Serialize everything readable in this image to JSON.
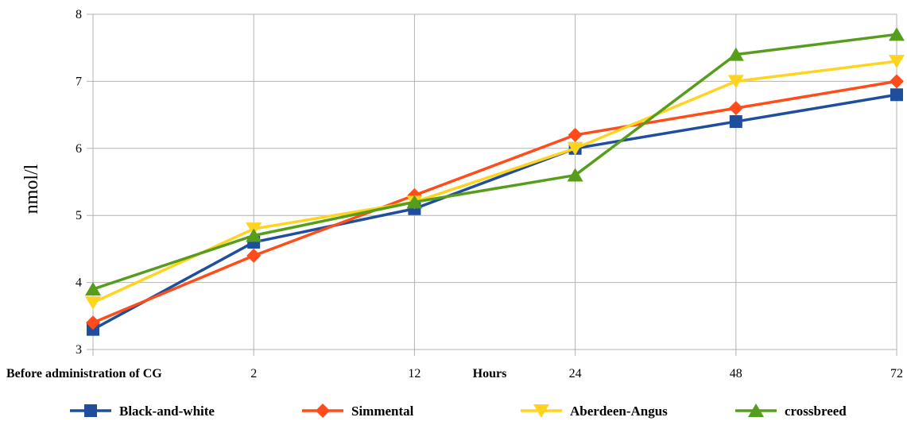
{
  "chart_data": {
    "type": "line",
    "categories": [
      "Before administration of CG",
      "2",
      "12",
      "24",
      "48",
      "72"
    ],
    "xlabel": "Hours",
    "ylabel": "nmol/l",
    "ylim": [
      3,
      8
    ],
    "yticks": [
      3,
      4,
      5,
      6,
      7,
      8
    ],
    "grid": true,
    "legend_position": "bottom",
    "series": [
      {
        "name": "Black-and-white",
        "color": "#1f4e9c",
        "marker": "square",
        "values": [
          3.3,
          4.6,
          5.1,
          6.0,
          6.4,
          6.8
        ]
      },
      {
        "name": "Simmental",
        "color": "#ff4c1a",
        "marker": "diamond",
        "values": [
          3.4,
          4.4,
          5.3,
          6.2,
          6.6,
          7.0
        ]
      },
      {
        "name": "Aberdeen-Angus",
        "color": "#ffd320",
        "marker": "triangle-down",
        "values": [
          3.7,
          4.8,
          5.2,
          6.0,
          7.0,
          7.3
        ]
      },
      {
        "name": "crossbreed",
        "color": "#579d1c",
        "marker": "triangle-up",
        "values": [
          3.9,
          4.7,
          5.2,
          5.6,
          7.4,
          7.7
        ]
      }
    ]
  }
}
